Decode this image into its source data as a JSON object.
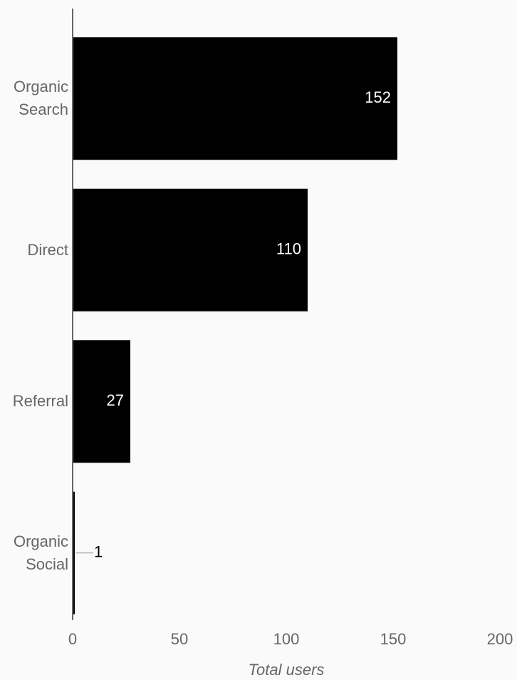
{
  "chart_data": {
    "type": "bar",
    "orientation": "horizontal",
    "categories": [
      "Organic Search",
      "Direct",
      "Referral",
      "Organic Social"
    ],
    "values": [
      152,
      110,
      27,
      1
    ],
    "color": "#000000",
    "xlim": [
      0,
      200
    ],
    "xticks": [
      0,
      50,
      100,
      150,
      200
    ],
    "xlabel": "Total users"
  }
}
